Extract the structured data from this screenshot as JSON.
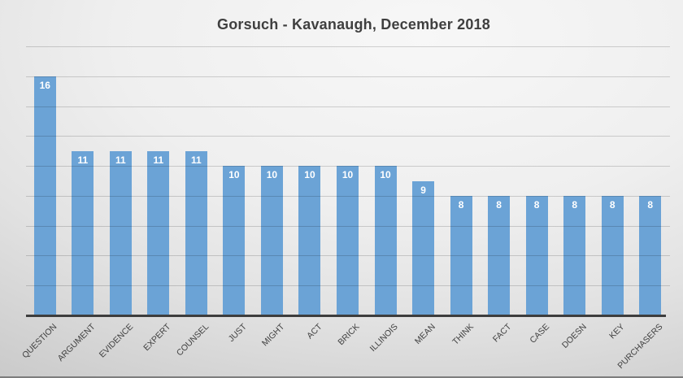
{
  "title": "Gorsuch - Kavanaugh, December 2018",
  "chart_data": {
    "type": "bar",
    "title": "Gorsuch - Kavanaugh, December 2018",
    "categories": [
      "QUESTION",
      "ARGUMENT",
      "EVIDENCE",
      "EXPERT",
      "COUNSEL",
      "JUST",
      "MIGHT",
      "ACT",
      "BRICK",
      "ILLINOIS",
      "MEAN",
      "THINK",
      "FACT",
      "CASE",
      "DOESN",
      "KEY",
      "PURCHASERS"
    ],
    "values": [
      16,
      11,
      11,
      11,
      11,
      10,
      10,
      10,
      10,
      10,
      9,
      8,
      8,
      8,
      8,
      8,
      8
    ],
    "xlabel": "",
    "ylabel": "",
    "ylim": [
      0,
      18
    ],
    "gridline_step": 2,
    "grid": true,
    "legend": false,
    "data_label_position": "inside-end",
    "x_label_rotation_deg": 45,
    "colors": {
      "bar": "#6BA3D6",
      "data_label": "#FFFFFF",
      "title": "#3F3F3F",
      "axis_line": "#3D3D3D",
      "gridline": "rgba(0,0,0,0.16)",
      "category_label": "#404040"
    }
  }
}
